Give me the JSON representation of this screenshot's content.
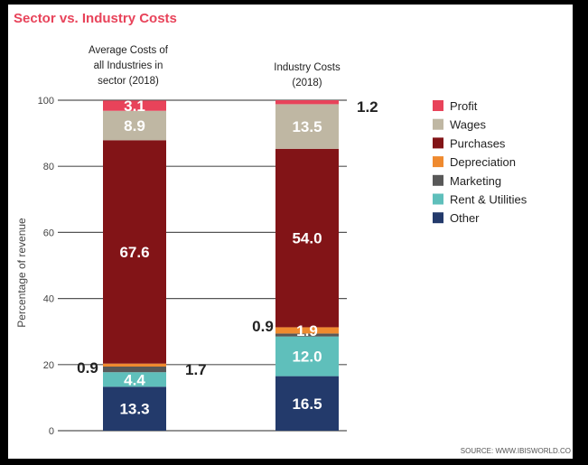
{
  "chart_data": {
    "type": "bar",
    "stacked": true,
    "title": "Sector vs. Industry Costs",
    "ylabel": "Percentage of revenue",
    "xlabel": "",
    "ylim": [
      0,
      100
    ],
    "yticks": [
      0,
      20,
      40,
      60,
      80,
      100
    ],
    "grid": true,
    "legend_position": "right",
    "categories": [
      "Average Costs of all Industries in sector (2018)",
      "Industry Costs (2018)"
    ],
    "category_label_lines": [
      [
        "Average Costs of",
        "all Industries in",
        "sector (2018)"
      ],
      [
        "Industry Costs",
        "(2018)"
      ]
    ],
    "series": [
      {
        "name": "Other",
        "color": "#233a6b",
        "values": [
          13.3,
          16.5
        ],
        "labels": [
          "13.3",
          "16.5"
        ]
      },
      {
        "name": "Rent & Utilities",
        "color": "#5fbfbb",
        "values": [
          4.4,
          12.0
        ],
        "labels": [
          "4.4",
          "12.0"
        ]
      },
      {
        "name": "Marketing",
        "color": "#585858",
        "values": [
          1.7,
          0.9
        ],
        "labels": [
          "1.7",
          "0.9"
        ]
      },
      {
        "name": "Depreciation",
        "color": "#ef8a2f",
        "values": [
          0.9,
          1.9
        ],
        "labels": [
          "0.9",
          "1.9"
        ]
      },
      {
        "name": "Purchases",
        "color": "#821417",
        "values": [
          67.6,
          54.0
        ],
        "labels": [
          "67.6",
          "54.0"
        ]
      },
      {
        "name": "Wages",
        "color": "#bfb7a3",
        "values": [
          8.9,
          13.5
        ],
        "labels": [
          "8.9",
          "13.5"
        ]
      },
      {
        "name": "Profit",
        "color": "#e8435a",
        "values": [
          3.1,
          1.2
        ],
        "labels": [
          "3.1",
          "1.2"
        ]
      }
    ],
    "legend_order": [
      "Profit",
      "Wages",
      "Purchases",
      "Depreciation",
      "Marketing",
      "Rent & Utilities",
      "Other"
    ],
    "source": "SOURCE: WWW.IBISWORLD.CO"
  },
  "colors": {
    "title": "#e8435a",
    "grid": "#555555",
    "text": "#222222",
    "background": "#ffffff"
  }
}
